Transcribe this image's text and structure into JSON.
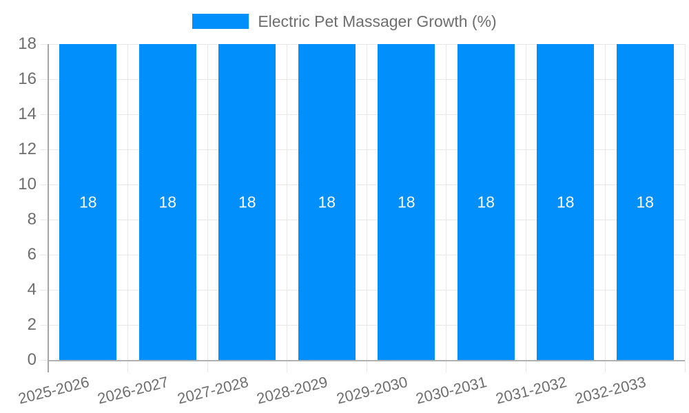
{
  "legend": {
    "label": "Electric Pet Massager Growth (%)"
  },
  "chart_data": {
    "type": "bar",
    "title": "Electric Pet Massager Growth (%)",
    "categories": [
      "2025-2026",
      "2026-2027",
      "2027-2028",
      "2028-2029",
      "2029-2030",
      "2030-2031",
      "2031-2032",
      "2032-2033"
    ],
    "series": [
      {
        "name": "Electric Pet Massager Growth (%)",
        "values": [
          18,
          18,
          18,
          18,
          18,
          18,
          18,
          18
        ]
      }
    ],
    "bar_value_labels": [
      "18",
      "18",
      "18",
      "18",
      "18",
      "18",
      "18",
      "18"
    ],
    "ylabel": "",
    "xlabel": "",
    "ylim": [
      0,
      18
    ],
    "yticks": [
      0,
      2,
      4,
      6,
      8,
      10,
      12,
      14,
      16,
      18
    ],
    "grid": true,
    "legend_position": "top-center",
    "x_label_rotation_deg": -14,
    "colors": {
      "bar": "#008ffb",
      "bar_label": "#ffffff",
      "axis_text": "#6e6e6e",
      "gridline": "#e7e7e7",
      "axis_line": "#b0b0b0",
      "y_axis_line": "#a6a6a6",
      "background": "#ffffff"
    }
  }
}
